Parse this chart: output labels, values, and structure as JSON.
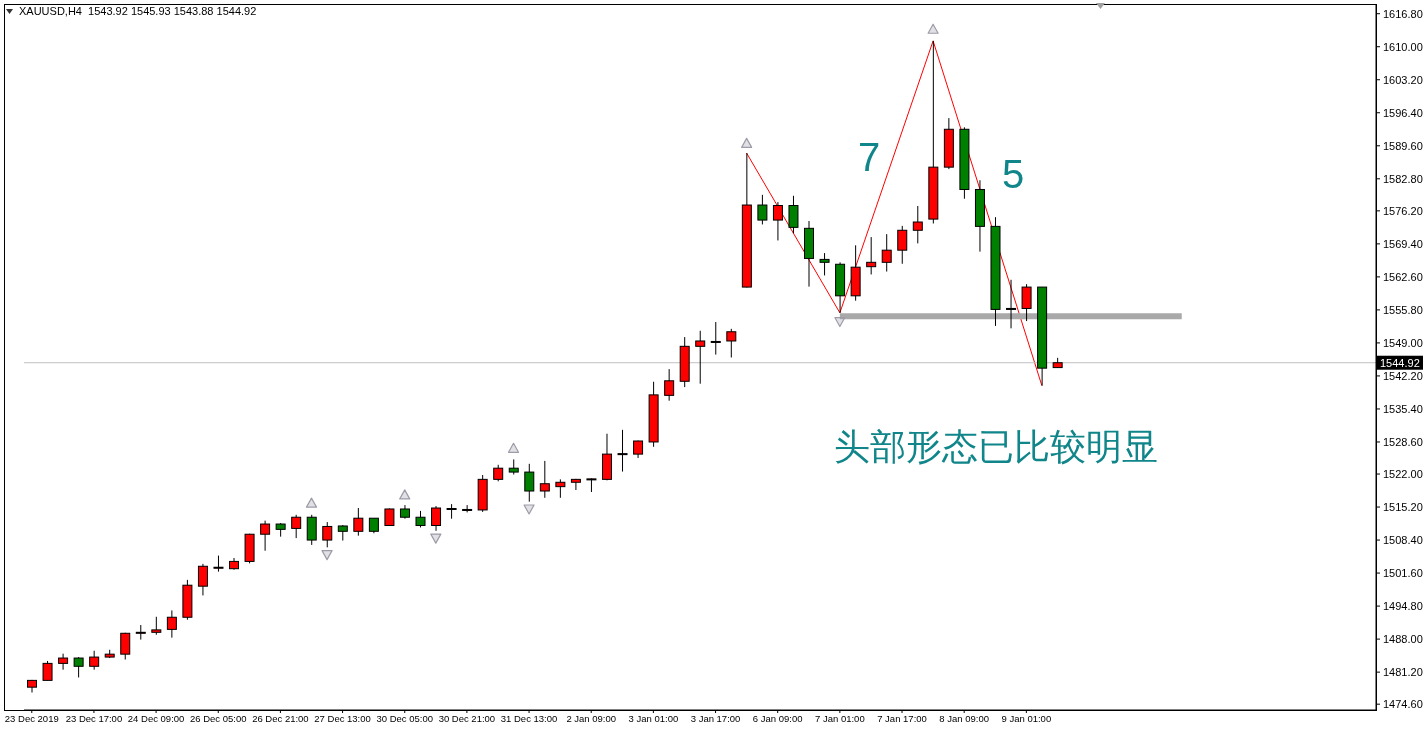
{
  "chart_data": {
    "type": "candlestick",
    "title": "XAUUSD,H4  1543.92 1545.93 1543.88 1544.92",
    "categories": [
      "23 Dec 2019",
      null,
      null,
      null,
      "23 Dec 17:00",
      null,
      null,
      null,
      "24 Dec 09:00",
      null,
      null,
      null,
      "26 Dec 05:00",
      null,
      null,
      null,
      "26 Dec 21:00",
      null,
      null,
      null,
      "27 Dec 13:00",
      null,
      null,
      null,
      "30 Dec 05:00",
      null,
      null,
      null,
      "30 Dec 21:00",
      null,
      null,
      null,
      "31 Dec 13:00",
      null,
      null,
      null,
      "2 Jan 09:00",
      null,
      null,
      null,
      "3 Jan 01:00",
      null,
      null,
      null,
      "3 Jan 17:00",
      null,
      null,
      null,
      "6 Jan 09:00",
      null,
      null,
      null,
      "7 Jan 01:00",
      null,
      null,
      null,
      "7 Jan 17:00",
      null,
      null,
      null,
      "8 Jan 09:00",
      null,
      null,
      null,
      "9 Jan 01:00",
      null,
      null,
      null,
      null,
      null,
      null,
      null,
      null,
      null,
      null,
      null,
      null,
      null,
      null,
      null,
      null,
      null,
      null,
      null,
      null,
      null,
      null
    ],
    "ohlc": [
      [
        1478.1,
        1479.6,
        1477.0,
        1479.5
      ],
      [
        1479.5,
        1483.5,
        1479.5,
        1483.0
      ],
      [
        1483.0,
        1485.0,
        1481.7,
        1484.1
      ],
      [
        1484.1,
        1484.3,
        1480.1,
        1482.4
      ],
      [
        1482.4,
        1485.6,
        1481.7,
        1484.3
      ],
      [
        1484.3,
        1485.8,
        1484.1,
        1484.9
      ],
      [
        1484.9,
        1489.3,
        1483.8,
        1489.2
      ],
      [
        1489.3,
        1490.9,
        1487.9,
        1489.4
      ],
      [
        1489.4,
        1492.6,
        1488.9,
        1489.9
      ],
      [
        1490.0,
        1493.9,
        1488.3,
        1492.5
      ],
      [
        1492.5,
        1500.2,
        1492.0,
        1499.1
      ],
      [
        1498.9,
        1503.5,
        1497.0,
        1503.0
      ],
      [
        1502.7,
        1505.2,
        1501.9,
        1502.8
      ],
      [
        1502.5,
        1504.7,
        1502.3,
        1504.0
      ],
      [
        1504.0,
        1509.7,
        1503.6,
        1509.6
      ],
      [
        1509.6,
        1512.4,
        1506.2,
        1511.7
      ],
      [
        1511.7,
        1511.9,
        1509.1,
        1510.6
      ],
      [
        1510.8,
        1513.6,
        1508.8,
        1513.1
      ],
      [
        1513.1,
        1513.6,
        1507.4,
        1508.4
      ],
      [
        1508.4,
        1512.1,
        1506.9,
        1511.2
      ],
      [
        1511.3,
        1511.5,
        1508.3,
        1510.2
      ],
      [
        1510.2,
        1515.0,
        1509.3,
        1512.9
      ],
      [
        1512.9,
        1512.9,
        1509.8,
        1510.2
      ],
      [
        1511.4,
        1514.9,
        1511.3,
        1514.8
      ],
      [
        1514.8,
        1515.6,
        1512.8,
        1513.1
      ],
      [
        1513.1,
        1514.4,
        1511.0,
        1511.4
      ],
      [
        1511.4,
        1515.4,
        1510.3,
        1515.0
      ],
      [
        1514.8,
        1515.8,
        1512.8,
        1514.9
      ],
      [
        1514.6,
        1515.6,
        1514.1,
        1514.7
      ],
      [
        1514.6,
        1521.8,
        1514.2,
        1520.9
      ],
      [
        1520.9,
        1523.9,
        1520.5,
        1523.2
      ],
      [
        1523.2,
        1525.0,
        1521.9,
        1522.4
      ],
      [
        1522.4,
        1524.1,
        1516.3,
        1518.5
      ],
      [
        1518.5,
        1524.7,
        1517.1,
        1520.0
      ],
      [
        1519.4,
        1520.9,
        1517.1,
        1520.3
      ],
      [
        1520.3,
        1521.0,
        1518.7,
        1520.9
      ],
      [
        1520.9,
        1521.1,
        1518.3,
        1521.0
      ],
      [
        1520.9,
        1530.3,
        1520.7,
        1526.1
      ],
      [
        1526.1,
        1531.1,
        1522.5,
        1526.2
      ],
      [
        1526.1,
        1528.9,
        1525.3,
        1528.8
      ],
      [
        1528.6,
        1541.0,
        1527.6,
        1538.3
      ],
      [
        1538.2,
        1543.6,
        1537.1,
        1541.2
      ],
      [
        1541.1,
        1550.2,
        1539.9,
        1548.3
      ],
      [
        1548.3,
        1551.5,
        1540.6,
        1549.4
      ],
      [
        1549.2,
        1553.3,
        1546.6,
        1549.3
      ],
      [
        1549.4,
        1551.9,
        1546.0,
        1551.3
      ],
      [
        1560.5,
        1588.1,
        1560.4,
        1577.4
      ],
      [
        1577.4,
        1579.5,
        1573.4,
        1574.3
      ],
      [
        1574.3,
        1578.0,
        1570.1,
        1577.3
      ],
      [
        1577.3,
        1579.3,
        1571.6,
        1572.8
      ],
      [
        1572.6,
        1574.1,
        1560.6,
        1566.4
      ],
      [
        1566.2,
        1567.5,
        1562.9,
        1565.6
      ],
      [
        1565.2,
        1565.6,
        1555.2,
        1558.7
      ],
      [
        1558.7,
        1569.1,
        1557.7,
        1564.6
      ],
      [
        1564.7,
        1570.8,
        1563.1,
        1565.6
      ],
      [
        1565.6,
        1571.4,
        1563.7,
        1568.1
      ],
      [
        1568.1,
        1573.1,
        1565.3,
        1572.2
      ],
      [
        1572.2,
        1577.2,
        1569.5,
        1573.9
      ],
      [
        1574.5,
        1611.2,
        1573.6,
        1585.2
      ],
      [
        1585.2,
        1595.3,
        1584.8,
        1593.0
      ],
      [
        1593.0,
        1593.4,
        1578.7,
        1580.6
      ],
      [
        1580.6,
        1582.5,
        1567.8,
        1573.0
      ],
      [
        1573.0,
        1574.9,
        1552.5,
        1555.9
      ],
      [
        1556.1,
        1562.0,
        1552.0,
        1556.0
      ],
      [
        1556.1,
        1561.1,
        1553.5,
        1560.5
      ],
      [
        1560.5,
        1560.5,
        1540.2,
        1543.8
      ],
      [
        1543.92,
        1545.93,
        1543.88,
        1544.92
      ],
      null,
      null,
      null,
      null,
      null,
      null,
      null,
      null,
      null,
      null,
      null,
      null,
      null,
      null,
      null,
      null,
      null,
      null,
      null,
      null
    ],
    "colors": [
      "#ff0000",
      "#ff0000",
      "#ff0000",
      "#008000",
      "#ff0000",
      "#ff0000",
      "#ff0000",
      "#ff0000",
      "#ff0000",
      "#ff0000",
      "#ff0000",
      "#ff0000",
      "#ff0000",
      "#ff0000",
      "#ff0000",
      "#ff0000",
      "#008000",
      "#ff0000",
      "#008000",
      "#ff0000",
      "#008000",
      "#ff0000",
      "#008000",
      "#ff0000",
      "#008000",
      "#008000",
      "#ff0000",
      "#ff0000",
      "#ff0000",
      "#ff0000",
      "#ff0000",
      "#008000",
      "#008000",
      "#ff0000",
      "#ff0000",
      "#ff0000",
      "#ff0000",
      "#ff0000",
      "#ff0000",
      "#ff0000",
      "#ff0000",
      "#ff0000",
      "#ff0000",
      "#ff0000",
      "#ff0000",
      "#ff0000",
      "#ff0000",
      "#008000",
      "#ff0000",
      "#008000",
      "#008000",
      "#008000",
      "#008000",
      "#ff0000",
      "#ff0000",
      "#ff0000",
      "#ff0000",
      "#ff0000",
      "#ff0000",
      "#ff0000",
      "#008000",
      "#008000",
      "#008000",
      "#008000",
      "#ff0000",
      "#008000",
      "#ff0000",
      null,
      null,
      null,
      null,
      null,
      null,
      null,
      null,
      null,
      null,
      null,
      null,
      null,
      null,
      null,
      null,
      null,
      null,
      null,
      null
    ],
    "series": [
      {
        "type": "line",
        "color": "#ff0000",
        "values": [
          null,
          null,
          null,
          null,
          null,
          null,
          null,
          null,
          null,
          null,
          null,
          null,
          null,
          null,
          null,
          null,
          null,
          null,
          null,
          null,
          null,
          null,
          null,
          null,
          null,
          null,
          null,
          null,
          null,
          null,
          null,
          null,
          null,
          null,
          null,
          null,
          null,
          null,
          null,
          null,
          null,
          null,
          null,
          null,
          null,
          null,
          1588.1,
          null,
          null,
          null,
          null,
          null,
          1555.2,
          null,
          null,
          null,
          null,
          null,
          1611.2,
          null,
          null,
          null,
          null,
          null,
          null,
          1540.2,
          null,
          null,
          null,
          null,
          null,
          null,
          null,
          null,
          null,
          null,
          null,
          null,
          null,
          null,
          null,
          null,
          null,
          null,
          null,
          null,
          null
        ]
      },
      {
        "type": "line",
        "color": "#a9a9a9",
        "values": [
          null,
          null,
          null,
          null,
          null,
          null,
          null,
          null,
          null,
          null,
          null,
          null,
          null,
          null,
          null,
          null,
          null,
          null,
          null,
          null,
          null,
          null,
          null,
          null,
          null,
          null,
          null,
          null,
          null,
          null,
          null,
          null,
          null,
          null,
          null,
          null,
          null,
          null,
          null,
          null,
          null,
          null,
          null,
          null,
          null,
          null,
          null,
          null,
          null,
          null,
          null,
          null,
          1554.5,
          1554.5,
          1554.5,
          1554.5,
          1554.5,
          1554.5,
          1554.5,
          1554.5,
          1554.5,
          1554.5,
          1554.5,
          1554.5,
          1554.5,
          1554.5,
          1554.5,
          1554.5,
          1554.5,
          1554.5,
          1554.5,
          1554.5,
          1554.5,
          1554.5,
          1554.5,
          null,
          null,
          null,
          null,
          null,
          null,
          null,
          null,
          null,
          null,
          null,
          null
        ]
      },
      {
        "type": "scatter",
        "color": "#9c9ca8",
        "marker": "triangle",
        "values": [
          null,
          null,
          null,
          null,
          null,
          null,
          null,
          null,
          null,
          null,
          null,
          null,
          null,
          null,
          null,
          null,
          null,
          null,
          1516.0,
          1505.4,
          null,
          null,
          null,
          null,
          1517.7,
          null,
          1508.8,
          null,
          null,
          null,
          null,
          1527.3,
          1514.8,
          null,
          null,
          null,
          null,
          null,
          null,
          null,
          null,
          null,
          null,
          null,
          null,
          null,
          1590.1,
          null,
          null,
          null,
          null,
          null,
          1553.4,
          null,
          null,
          null,
          null,
          null,
          1613.6,
          null,
          null,
          null,
          null,
          null,
          null,
          null,
          null,
          null,
          null,
          null,
          null,
          null,
          null,
          null,
          null,
          null,
          null,
          null,
          null,
          null,
          null,
          null,
          null,
          null,
          null,
          null,
          null
        ]
      }
    ],
    "ylim": [
      1473.4,
      1618.8
    ],
    "yticks": [
      {
        "value": 1474.6,
        "label": "1474.60"
      },
      {
        "value": 1481.2,
        "label": "1481.20"
      },
      {
        "value": 1488,
        "label": "1488.00"
      },
      {
        "value": 1494.8,
        "label": "1494.80"
      },
      {
        "value": 1501.6,
        "label": "1501.60"
      },
      {
        "value": 1508.4,
        "label": "1508.40"
      },
      {
        "value": 1515.2,
        "label": "1515.20"
      },
      {
        "value": 1522,
        "label": "1522.00"
      },
      {
        "value": 1528.6,
        "label": "1528.60"
      },
      {
        "value": 1535.4,
        "label": "1535.40"
      },
      {
        "value": 1542.2,
        "label": "1542.20"
      },
      {
        "value": 1549,
        "label": "1549.00"
      },
      {
        "value": 1555.8,
        "label": "1555.80"
      },
      {
        "value": 1562.6,
        "label": "1562.60"
      },
      {
        "value": 1569.4,
        "label": "1569.40"
      },
      {
        "value": 1576.2,
        "label": "1576.20"
      },
      {
        "value": 1582.8,
        "label": "1582.80"
      },
      {
        "value": 1589.6,
        "label": "1589.60"
      },
      {
        "value": 1596.4,
        "label": "1596.40"
      },
      {
        "value": 1603.2,
        "label": "1603.20"
      },
      {
        "value": 1610,
        "label": "1610.00"
      },
      {
        "value": 1616.8,
        "label": "1616.80"
      }
    ],
    "ref_lines": [
      {
        "axis": "y",
        "value": 1544.92,
        "label": "1544.92",
        "color": "#c0c0c0"
      }
    ],
    "annotations": [
      "7",
      "5",
      "头部形态已比较明显"
    ]
  }
}
